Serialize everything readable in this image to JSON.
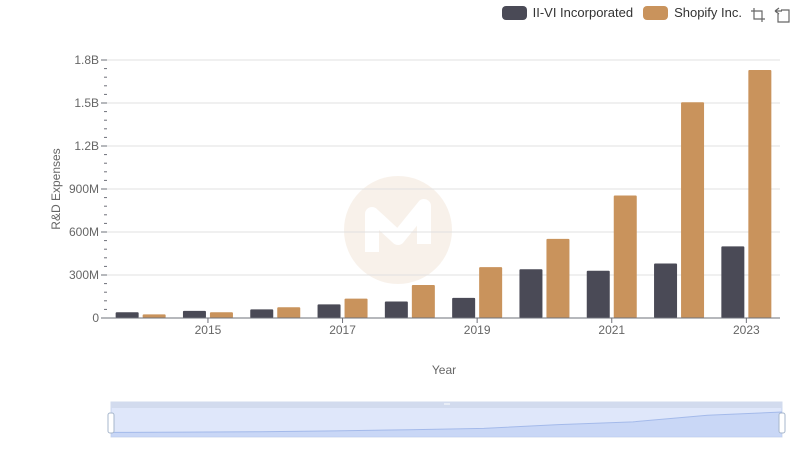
{
  "legend": {
    "items": [
      {
        "name": "II-VI Incorporated",
        "color": "#4a4a56"
      },
      {
        "name": "Shopify Inc.",
        "color": "#c9935c"
      }
    ]
  },
  "toolbar": {
    "icons": [
      "zoom-select-icon",
      "zoom-reset-icon"
    ]
  },
  "chart_data": {
    "type": "bar",
    "categories": [
      "2014",
      "2015",
      "2016",
      "2017",
      "2018",
      "2019",
      "2020",
      "2021",
      "2022",
      "2023"
    ],
    "x_tick_labels": [
      "2015",
      "2017",
      "2019",
      "2021",
      "2023"
    ],
    "series": [
      {
        "name": "II-VI Incorporated",
        "color": "#4a4a56",
        "values": [
          40000000,
          50000000,
          60000000,
          95000000,
          115000000,
          140000000,
          340000000,
          330000000,
          380000000,
          500000000
        ]
      },
      {
        "name": "Shopify Inc.",
        "color": "#c9935c",
        "values": [
          25000000,
          40000000,
          75000000,
          135000000,
          230000000,
          355000000,
          552000000,
          855000000,
          1505000000,
          1730000000
        ]
      }
    ],
    "xlabel": "Year",
    "ylabel": "R&D Expenses",
    "ylim": [
      0,
      1800000000
    ],
    "y_ticks": [
      {
        "value": 0,
        "label": "0"
      },
      {
        "value": 300000000,
        "label": "300M"
      },
      {
        "value": 600000000,
        "label": "600M"
      },
      {
        "value": 900000000,
        "label": "900M"
      },
      {
        "value": 1200000000,
        "label": "1.2B"
      },
      {
        "value": 1500000000,
        "label": "1.5B"
      },
      {
        "value": 1800000000,
        "label": "1.8B"
      }
    ],
    "grid": true,
    "legend_position": "top-right",
    "data_zoom": {
      "start": 0,
      "end": 100
    }
  }
}
